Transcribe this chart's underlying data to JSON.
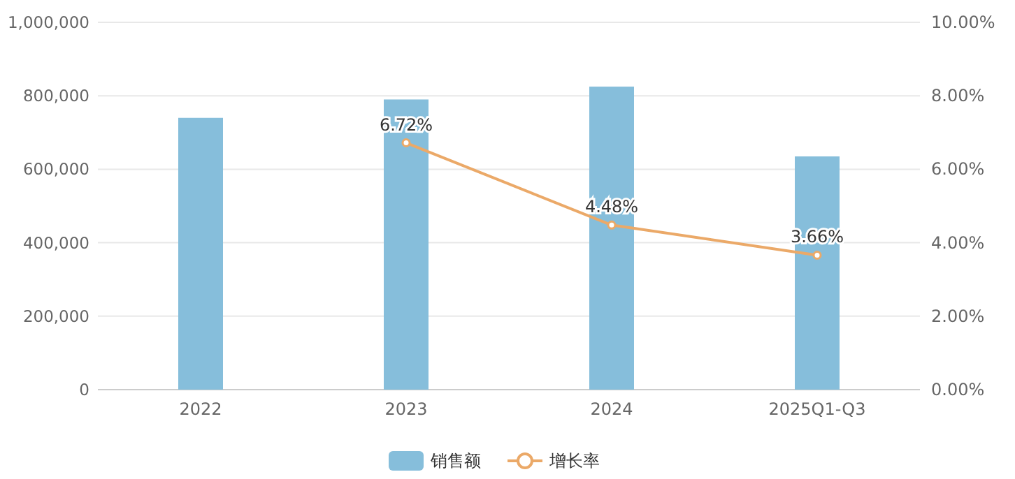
{
  "chart_data": {
    "type": "bar",
    "categories": [
      "2022",
      "2023",
      "2024",
      "2025Q1-Q3"
    ],
    "series": [
      {
        "name": "销售额",
        "color": "#86bedb",
        "values": [
          740000,
          790000,
          825000,
          635000
        ]
      },
      {
        "name": "增长率",
        "type": "line",
        "axis": "y2",
        "color": "#eba968",
        "marker": "circle",
        "values": [
          null,
          6.72,
          4.48,
          3.66
        ],
        "value_labels": [
          null,
          "6.72%",
          "4.48%",
          "3.66%"
        ]
      }
    ],
    "ylim": [
      0,
      1000000
    ],
    "yticks": [
      {
        "value": 0,
        "label": "0"
      },
      {
        "value": 200000,
        "label": "200,000"
      },
      {
        "value": 400000,
        "label": "400,000"
      },
      {
        "value": 600000,
        "label": "600,000"
      },
      {
        "value": 800000,
        "label": "800,000"
      },
      {
        "value": 1000000,
        "label": "1,000,000"
      }
    ],
    "y2lim": [
      0,
      10
    ],
    "y2ticks": [
      {
        "value": 0,
        "label": "0.00%"
      },
      {
        "value": 2,
        "label": "2.00%"
      },
      {
        "value": 4,
        "label": "4.00%"
      },
      {
        "value": 6,
        "label": "6.00%"
      },
      {
        "value": 8,
        "label": "8.00%"
      },
      {
        "value": 10,
        "label": "10.00%"
      }
    ],
    "grid": "y",
    "legend": "bottom"
  }
}
